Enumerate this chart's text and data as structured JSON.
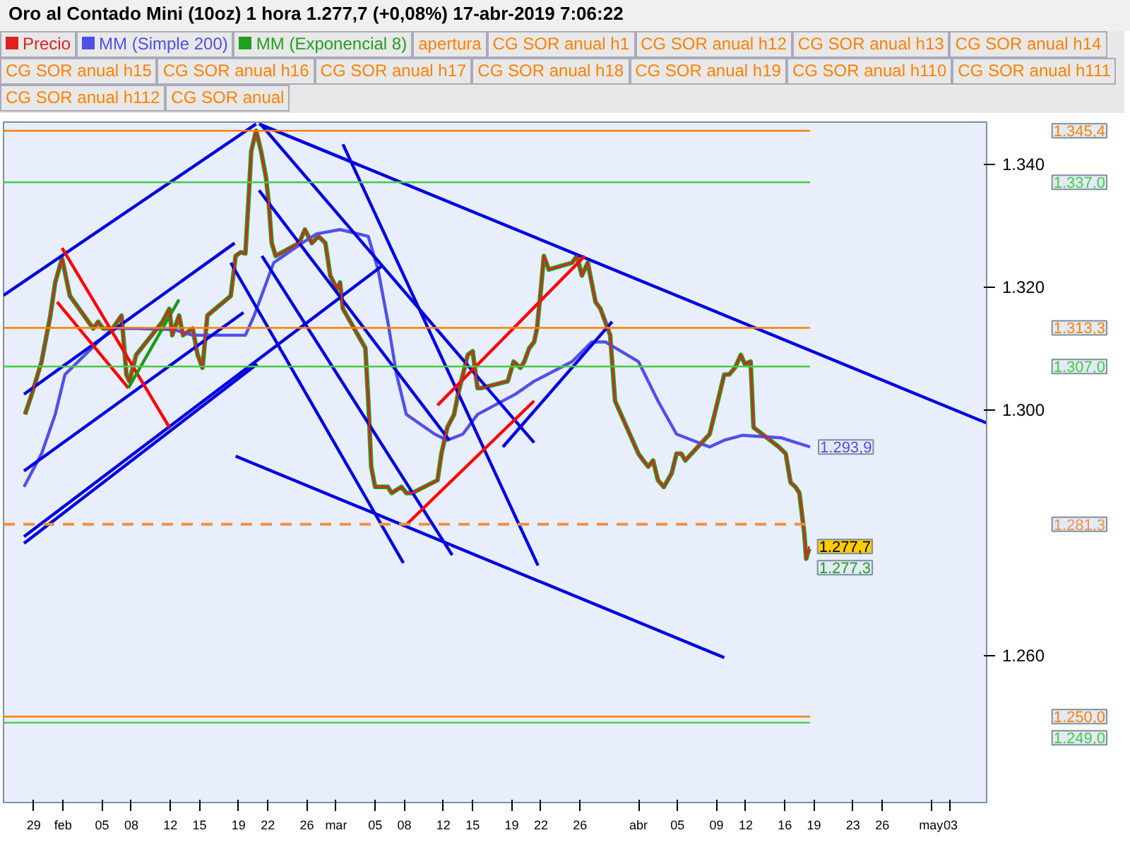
{
  "chart_data": {
    "type": "line",
    "title": "Oro al Contado Mini (10oz)   1 hora   1.277,7 (+0,08%)   17-abr-2019 7:06:22",
    "xlim": [
      "2019-01-25T21:36",
      "2019-05-06T16:48"
    ],
    "ylim": [
      1236,
      1346.8
    ],
    "xticks": [
      {
        "value": "2019-01-29",
        "label": "29"
      },
      {
        "value": "2019-02-01",
        "label": "feb"
      },
      {
        "value": "2019-02-05",
        "label": "05"
      },
      {
        "value": "2019-02-08",
        "label": "08"
      },
      {
        "value": "2019-02-12",
        "label": "12"
      },
      {
        "value": "2019-02-15",
        "label": "15"
      },
      {
        "value": "2019-02-19",
        "label": "19"
      },
      {
        "value": "2019-02-22",
        "label": "22"
      },
      {
        "value": "2019-02-26",
        "label": "26"
      },
      {
        "value": "2019-03-01",
        "label": "mar"
      },
      {
        "value": "2019-03-05",
        "label": "05"
      },
      {
        "value": "2019-03-08",
        "label": "08"
      },
      {
        "value": "2019-03-12",
        "label": "12"
      },
      {
        "value": "2019-03-15",
        "label": "15"
      },
      {
        "value": "2019-03-19",
        "label": "19"
      },
      {
        "value": "2019-03-22",
        "label": "22"
      },
      {
        "value": "2019-03-26",
        "label": "26"
      },
      {
        "value": "2019-04-01",
        "label": "abr"
      },
      {
        "value": "2019-04-05",
        "label": "05"
      },
      {
        "value": "2019-04-09",
        "label": "09"
      },
      {
        "value": "2019-04-12",
        "label": "12"
      },
      {
        "value": "2019-04-16",
        "label": "16"
      },
      {
        "value": "2019-04-19",
        "label": "19"
      },
      {
        "value": "2019-04-23",
        "label": "23"
      },
      {
        "value": "2019-04-26",
        "label": "26"
      },
      {
        "value": "2019-05-01",
        "label": "may"
      },
      {
        "value": "2019-05-03",
        "label": "03"
      }
    ],
    "yticks": [
      {
        "value": 1260,
        "label": "1.260"
      },
      {
        "value": 1300,
        "label": "1.300"
      },
      {
        "value": 1320,
        "label": "1.320"
      },
      {
        "value": 1340,
        "label": "1.340"
      }
    ],
    "legend": "top",
    "series": [
      {
        "name": "Precio",
        "color": "#e02020",
        "x": [
          "2019-01-28T02:24",
          "2019-01-28T19:12",
          "2019-01-29T19:12",
          "2019-01-30T16:48",
          "2019-01-31T04:48",
          "2019-01-31T21:36",
          "2019-02-01T16:48",
          "2019-02-04T02:24",
          "2019-02-04T14:24",
          "2019-02-05T02:24",
          "2019-02-06T02:24",
          "2019-02-07T00:00",
          "2019-02-07T12:00",
          "2019-02-07T19:12",
          "2019-02-08T12:00",
          "2019-02-11T04:48",
          "2019-02-11T21:36",
          "2019-02-12T04:48",
          "2019-02-12T21:36",
          "2019-02-13T07:12",
          "2019-02-14T07:12",
          "2019-02-14T19:12",
          "2019-02-15T07:12",
          "2019-02-15T19:12",
          "2019-02-18T04:48",
          "2019-02-18T16:48",
          "2019-02-19T04:48",
          "2019-02-19T16:48",
          "2019-02-20T00:00",
          "2019-02-20T07:12",
          "2019-02-20T19:12",
          "2019-02-21T07:12",
          "2019-02-21T19:12",
          "2019-02-22T02:24",
          "2019-02-22T09:36",
          "2019-02-22T19:12",
          "2019-02-25T04:48",
          "2019-02-25T19:12",
          "2019-02-26T12:00",
          "2019-02-27T04:48",
          "2019-02-27T21:36",
          "2019-02-28T09:36",
          "2019-03-01T02:24",
          "2019-03-01T09:36",
          "2019-03-01T16:48",
          "2019-03-04T00:00",
          "2019-03-04T07:12",
          "2019-03-04T14:24",
          "2019-03-05T00:00",
          "2019-03-05T14:24",
          "2019-03-06T07:12",
          "2019-03-06T16:48",
          "2019-03-07T16:48",
          "2019-03-08T04:48",
          "2019-03-08T19:12",
          "2019-03-11T09:36",
          "2019-03-11T19:12",
          "2019-03-12T09:36",
          "2019-03-13T02:24",
          "2019-03-13T12:00",
          "2019-03-14T00:00",
          "2019-03-14T12:00",
          "2019-03-15T00:00",
          "2019-03-15T12:00",
          "2019-03-15T21:36",
          "2019-03-18T14:24",
          "2019-03-19T04:48",
          "2019-03-19T21:36",
          "2019-03-20T07:12",
          "2019-03-20T19:12",
          "2019-03-21T07:12",
          "2019-03-21T14:24",
          "2019-03-22T00:00",
          "2019-03-22T07:12",
          "2019-03-22T19:12",
          "2019-03-25T04:48",
          "2019-03-25T16:48",
          "2019-03-26T04:48",
          "2019-03-26T19:12",
          "2019-03-27T04:48",
          "2019-03-27T14:24",
          "2019-03-28T02:24",
          "2019-03-28T14:24",
          "2019-03-29T02:24",
          "2019-03-29T14:24",
          "2019-04-01T00:00",
          "2019-04-01T12:00",
          "2019-04-02T00:00",
          "2019-04-02T12:00",
          "2019-04-03T00:00",
          "2019-04-03T14:24",
          "2019-04-04T09:36",
          "2019-04-04T21:36",
          "2019-04-05T09:36",
          "2019-04-05T19:12",
          "2019-04-08T07:12",
          "2019-04-08T19:12",
          "2019-04-09T19:12",
          "2019-04-10T07:12",
          "2019-04-10T21:36",
          "2019-04-11T12:00",
          "2019-04-11T21:36",
          "2019-04-12T12:00",
          "2019-04-12T19:12",
          "2019-04-15T09:36",
          "2019-04-16T02:24",
          "2019-04-16T14:24",
          "2019-04-17T02:24",
          "2019-04-17T12:00",
          "2019-04-18T00:00",
          "2019-04-18T04:48",
          "2019-04-18T12:00"
        ],
        "values": [
          1299.2,
          1302.5,
          1307.8,
          1315.3,
          1320.7,
          1324.6,
          1318.5,
          1313.2,
          1314.3,
          1313.2,
          1313.2,
          1315.3,
          1305.7,
          1304.6,
          1308.9,
          1314.3,
          1316.4,
          1312.1,
          1315.3,
          1312.1,
          1313.2,
          1308.9,
          1306.8,
          1315.3,
          1318.5,
          1325.0,
          1325.6,
          1325.4,
          1333.6,
          1342.1,
          1345.4,
          1342.1,
          1337.9,
          1333.6,
          1327.1,
          1325.0,
          1327.1,
          1329.3,
          1327.1,
          1328.2,
          1327.1,
          1321.8,
          1319.6,
          1320.7,
          1316.4,
          1310.0,
          1301.4,
          1290.7,
          1287.4,
          1287.4,
          1287.4,
          1286.4,
          1287.4,
          1286.4,
          1286.4,
          1288.5,
          1292.8,
          1297.1,
          1299.2,
          1302.5,
          1305.7,
          1308.9,
          1309.5,
          1303.5,
          1303.5,
          1304.6,
          1307.8,
          1306.8,
          1307.8,
          1310.0,
          1311.0,
          1313.2,
          1319.6,
          1325.0,
          1322.8,
          1323.9,
          1325.0,
          1321.8,
          1323.9,
          1320.7,
          1317.5,
          1316.4,
          1314.3,
          1312.1,
          1301.4,
          1292.8,
          1291.7,
          1290.7,
          1291.7,
          1288.5,
          1287.4,
          1289.6,
          1292.8,
          1292.8,
          1291.7,
          1296.0,
          1299.2,
          1305.7,
          1305.7,
          1306.8,
          1308.9,
          1307.4,
          1307.8,
          1297.1,
          1293.9,
          1292.8,
          1288.1,
          1287.4,
          1286.4,
          1279.9,
          1275.7,
          1277.7
        ],
        "value_labels": [
          null,
          null,
          null,
          null,
          null,
          null,
          null,
          null,
          null,
          null,
          null,
          null,
          null,
          null,
          null,
          null,
          null,
          null,
          null,
          null,
          null,
          null,
          null,
          null,
          null,
          null,
          null,
          null,
          null,
          null,
          null,
          null,
          null,
          null,
          null,
          null,
          null,
          null,
          null,
          null,
          null,
          null,
          null,
          null,
          null,
          null,
          null,
          null,
          null,
          null,
          null,
          null,
          null,
          null,
          null,
          null,
          null,
          null,
          null,
          null,
          null,
          null,
          null,
          null,
          null,
          null,
          null,
          null,
          null,
          null,
          null,
          null,
          null,
          null,
          null,
          null,
          null,
          null,
          null,
          null,
          null,
          null,
          null,
          null,
          null,
          null,
          null,
          null,
          null,
          null,
          null,
          null,
          null,
          null,
          null,
          null,
          null,
          null,
          null,
          null,
          null,
          null,
          null,
          null,
          null,
          null,
          null,
          null,
          null,
          null,
          null,
          "1.277,7"
        ]
      },
      {
        "name": "MM (Simple 200)",
        "color": "#5050e8",
        "x": [
          "2019-01-28T00:00",
          "2019-01-29T19:12",
          "2019-01-31T04:48",
          "2019-02-01T04:48",
          "2019-02-04T14:24",
          "2019-02-06T02:24",
          "2019-02-08T12:00",
          "2019-02-12T09:36",
          "2019-02-14T07:12",
          "2019-02-19T16:48",
          "2019-02-20T14:24",
          "2019-02-21T14:24",
          "2019-02-22T14:24",
          "2019-02-25T12:00",
          "2019-02-27T00:00",
          "2019-03-01T09:36",
          "2019-03-04T07:12",
          "2019-03-05T07:12",
          "2019-03-06T07:12",
          "2019-03-07T04:48",
          "2019-03-08T04:48",
          "2019-03-11T02:24",
          "2019-03-12T09:36",
          "2019-03-14T00:00",
          "2019-03-15T12:00",
          "2019-03-19T09:36",
          "2019-03-21T07:12",
          "2019-03-25T04:48",
          "2019-03-27T04:48",
          "2019-03-28T14:24",
          "2019-04-01T00:00",
          "2019-04-03T00:00",
          "2019-04-04T21:36",
          "2019-04-08T07:12",
          "2019-04-09T19:12",
          "2019-04-11T16:48",
          "2019-04-15T14:24",
          "2019-04-18T14:24"
        ],
        "values": [
          1287.4,
          1292.8,
          1299.2,
          1305.7,
          1311.0,
          1313.2,
          1313.2,
          1313.0,
          1312.1,
          1312.1,
          1315.3,
          1319.6,
          1323.9,
          1327.1,
          1328.6,
          1329.3,
          1328.2,
          1322.8,
          1314.3,
          1305.7,
          1299.2,
          1296.0,
          1295.0,
          1296.0,
          1299.2,
          1302.5,
          1304.6,
          1307.8,
          1311.0,
          1311.0,
          1307.8,
          1301.4,
          1296.0,
          1293.9,
          1295.0,
          1295.8,
          1295.4,
          1293.9
        ],
        "value_labels": [
          null,
          null,
          null,
          null,
          null,
          null,
          null,
          null,
          null,
          null,
          null,
          null,
          null,
          null,
          null,
          null,
          null,
          null,
          null,
          null,
          null,
          null,
          null,
          null,
          null,
          null,
          null,
          null,
          null,
          null,
          null,
          null,
          null,
          null,
          null,
          null,
          null,
          "1.293,9"
        ]
      },
      {
        "name": "MM (Exponencial 8)",
        "color": "#1fa01f",
        "x": [
          "2019-01-28T02:24",
          "2019-01-28T19:12",
          "2019-01-29T19:12",
          "2019-01-30T16:48",
          "2019-01-31T04:48",
          "2019-01-31T21:36",
          "2019-02-01T16:48",
          "2019-02-04T02:24",
          "2019-02-04T14:24",
          "2019-02-05T02:24",
          "2019-02-06T02:24",
          "2019-02-07T00:00",
          "2019-02-07T12:00",
          "2019-02-07T19:12",
          "2019-02-08T12:00",
          "2019-02-11T04:48",
          "2019-02-11T21:36",
          "2019-02-12T04:48",
          "2019-02-12T21:36",
          "2019-02-13T07:12",
          "2019-02-14T07:12",
          "2019-02-14T19:12",
          "2019-02-15T07:12",
          "2019-02-15T19:12",
          "2019-02-18T04:48",
          "2019-02-18T16:48",
          "2019-02-19T04:48",
          "2019-02-19T16:48",
          "2019-02-20T00:00",
          "2019-02-20T07:12",
          "2019-02-20T19:12",
          "2019-02-21T07:12",
          "2019-02-21T19:12",
          "2019-02-22T02:24",
          "2019-02-22T09:36",
          "2019-02-22T19:12",
          "2019-02-25T04:48",
          "2019-02-25T19:12",
          "2019-02-26T12:00",
          "2019-02-27T04:48",
          "2019-02-27T21:36",
          "2019-02-28T09:36",
          "2019-03-01T02:24",
          "2019-03-01T09:36",
          "2019-03-01T16:48",
          "2019-03-04T00:00",
          "2019-03-04T07:12",
          "2019-03-04T14:24",
          "2019-03-05T00:00",
          "2019-03-05T14:24",
          "2019-03-06T07:12",
          "2019-03-06T16:48",
          "2019-03-07T16:48",
          "2019-03-08T04:48",
          "2019-03-08T19:12",
          "2019-03-11T09:36",
          "2019-03-11T19:12",
          "2019-03-12T09:36",
          "2019-03-13T02:24",
          "2019-03-13T12:00",
          "2019-03-14T00:00",
          "2019-03-14T12:00",
          "2019-03-15T00:00",
          "2019-03-15T12:00",
          "2019-03-15T21:36",
          "2019-03-18T14:24",
          "2019-03-19T04:48",
          "2019-03-19T21:36",
          "2019-03-20T07:12",
          "2019-03-20T19:12",
          "2019-03-21T07:12",
          "2019-03-21T14:24",
          "2019-03-22T00:00",
          "2019-03-22T07:12",
          "2019-03-22T19:12",
          "2019-03-25T04:48",
          "2019-03-25T16:48",
          "2019-03-26T04:48",
          "2019-03-26T19:12",
          "2019-03-27T04:48",
          "2019-03-27T14:24",
          "2019-03-28T02:24",
          "2019-03-28T14:24",
          "2019-03-29T02:24",
          "2019-03-29T14:24",
          "2019-04-01T00:00",
          "2019-04-01T12:00",
          "2019-04-02T00:00",
          "2019-04-02T12:00",
          "2019-04-03T00:00",
          "2019-04-03T14:24",
          "2019-04-04T09:36",
          "2019-04-04T21:36",
          "2019-04-05T09:36",
          "2019-04-05T19:12",
          "2019-04-08T07:12",
          "2019-04-08T19:12",
          "2019-04-09T19:12",
          "2019-04-10T07:12",
          "2019-04-10T21:36",
          "2019-04-11T12:00",
          "2019-04-11T21:36",
          "2019-04-12T12:00",
          "2019-04-12T19:12",
          "2019-04-15T09:36",
          "2019-04-16T02:24",
          "2019-04-16T14:24",
          "2019-04-17T02:24",
          "2019-04-17T12:00",
          "2019-04-18T00:00",
          "2019-04-18T04:48",
          "2019-04-18T12:00"
        ],
        "values": [
          1299.2,
          1302.5,
          1307.8,
          1315.3,
          1320.7,
          1324.6,
          1318.5,
          1313.2,
          1314.3,
          1313.2,
          1313.2,
          1315.3,
          1305.7,
          1304.6,
          1308.9,
          1314.3,
          1316.4,
          1312.1,
          1315.3,
          1312.1,
          1313.2,
          1308.9,
          1306.8,
          1315.3,
          1318.5,
          1325.0,
          1325.6,
          1325.4,
          1333.6,
          1342.1,
          1345.4,
          1342.1,
          1337.9,
          1333.6,
          1327.1,
          1325.0,
          1327.1,
          1329.3,
          1327.1,
          1328.2,
          1327.1,
          1321.8,
          1319.6,
          1320.7,
          1316.4,
          1310.0,
          1301.4,
          1290.7,
          1287.4,
          1287.4,
          1287.4,
          1286.4,
          1287.4,
          1286.4,
          1286.4,
          1288.5,
          1292.8,
          1297.1,
          1299.2,
          1302.5,
          1305.7,
          1308.9,
          1309.5,
          1303.5,
          1303.5,
          1304.6,
          1307.8,
          1306.8,
          1307.8,
          1310.0,
          1311.0,
          1313.2,
          1319.6,
          1325.0,
          1322.8,
          1323.9,
          1325.0,
          1321.8,
          1323.9,
          1320.7,
          1317.5,
          1316.4,
          1314.3,
          1312.1,
          1301.4,
          1292.8,
          1291.7,
          1290.7,
          1291.7,
          1288.5,
          1287.4,
          1289.6,
          1292.8,
          1292.8,
          1291.7,
          1296.0,
          1299.2,
          1305.7,
          1305.7,
          1306.8,
          1308.9,
          1307.4,
          1307.8,
          1297.1,
          1293.9,
          1292.8,
          1288.1,
          1287.4,
          1286.4,
          1279.9,
          1275.7,
          1277.3
        ],
        "value_labels": [
          null,
          null,
          null,
          null,
          null,
          null,
          null,
          null,
          null,
          null,
          null,
          null,
          null,
          null,
          null,
          null,
          null,
          null,
          null,
          null,
          null,
          null,
          null,
          null,
          null,
          null,
          null,
          null,
          null,
          null,
          null,
          null,
          null,
          null,
          null,
          null,
          null,
          null,
          null,
          null,
          null,
          null,
          null,
          null,
          null,
          null,
          null,
          null,
          null,
          null,
          null,
          null,
          null,
          null,
          null,
          null,
          null,
          null,
          null,
          null,
          null,
          null,
          null,
          null,
          null,
          null,
          null,
          null,
          null,
          null,
          null,
          null,
          null,
          null,
          null,
          null,
          null,
          null,
          null,
          null,
          null,
          null,
          null,
          null,
          null,
          null,
          null,
          null,
          null,
          null,
          null,
          null,
          null,
          null,
          null,
          null,
          null,
          null,
          null,
          null,
          null,
          null,
          null,
          null,
          null,
          null,
          null,
          null,
          null,
          null,
          null,
          "1.277,3"
        ]
      },
      {
        "color": "#0000e0",
        "x": [
          "2019-01-25T21:36",
          "2019-02-20T19:12"
        ],
        "values": [
          1318.6,
          1346.5
        ]
      },
      {
        "color": "#0000e0",
        "x": [
          "2019-01-28T00:00",
          "2019-02-18T14:24"
        ],
        "values": [
          1302.5,
          1327.1
        ]
      },
      {
        "color": "#0000e0",
        "x": [
          "2019-01-28T00:00",
          "2019-02-19T12:00"
        ],
        "values": [
          1290.0,
          1315.8
        ]
      },
      {
        "color": "#0000e0",
        "x": [
          "2019-01-28T00:00",
          "2019-03-05T19:12"
        ],
        "values": [
          1279.3,
          1323.5
        ]
      },
      {
        "color": "#0000e0",
        "x": [
          "2019-01-28T00:00",
          "2019-02-20T21:36"
        ],
        "values": [
          1278.2,
          1307.4
        ]
      },
      {
        "color": "#0000e0",
        "x": [
          "2019-02-21T02:24",
          "2019-05-06T16:48"
        ],
        "values": [
          1346.5,
          1297.8
        ]
      },
      {
        "color": "#0000e0",
        "x": [
          "2019-02-18T04:48",
          "2019-03-07T21:36"
        ],
        "values": [
          1323.9,
          1275.0
        ]
      },
      {
        "color": "#0000e0",
        "x": [
          "2019-02-21T09:36",
          "2019-03-12T21:36"
        ],
        "values": [
          1325.0,
          1276.3
        ]
      },
      {
        "color": "#0000e0",
        "x": [
          "2019-02-21T02:24",
          "2019-03-12T14:24"
        ],
        "values": [
          1335.7,
          1295.0
        ]
      },
      {
        "color": "#0000e0",
        "x": [
          "2019-02-21T07:12",
          "2019-03-21T07:12"
        ],
        "values": [
          1346.4,
          1294.6
        ]
      },
      {
        "color": "#0000e0",
        "x": [
          "2019-03-01T16:48",
          "2019-03-21T16:48"
        ],
        "values": [
          1343.2,
          1274.6
        ]
      },
      {
        "color": "#0000e0",
        "x": [
          "2019-02-18T16:48",
          "2019-04-09T19:12"
        ],
        "values": [
          1292.4,
          1259.6
        ]
      },
      {
        "color": "#0000e0",
        "x": [
          "2019-03-18T02:24",
          "2019-03-29T07:12"
        ],
        "values": [
          1293.9,
          1314.3
        ]
      },
      {
        "color": "#ff0000",
        "x": [
          "2019-01-31T21:36",
          "2019-02-11T21:36"
        ],
        "values": [
          1326.3,
          1297.1
        ]
      },
      {
        "color": "#ff0000",
        "x": [
          "2019-01-31T09:36",
          "2019-02-07T16:48"
        ],
        "values": [
          1317.5,
          1303.5
        ]
      },
      {
        "color": "#ff0000",
        "x": [
          "2019-03-08T07:12",
          "2019-03-21T07:12"
        ],
        "values": [
          1281.4,
          1301.4
        ]
      },
      {
        "color": "#ff0000",
        "x": [
          "2019-03-11T09:36",
          "2019-03-26T12:00"
        ],
        "values": [
          1300.7,
          1325.0
        ]
      },
      {
        "color": "#1a9a1a",
        "x": [
          "2019-02-07T16:48",
          "2019-02-12T21:36"
        ],
        "values": [
          1303.5,
          1317.9
        ]
      }
    ],
    "ref_lines": [
      {
        "axis": "y",
        "value": 1345.4,
        "label": "1.345,4",
        "color": "#ff7f00"
      },
      {
        "axis": "y",
        "value": 1337.0,
        "label": "1.337,0",
        "color": "#44cc44"
      },
      {
        "axis": "y",
        "value": 1313.3,
        "label": "1.313,3",
        "color": "#ff7f00"
      },
      {
        "axis": "y",
        "value": 1307.0,
        "label": "1.307,0",
        "color": "#44cc44"
      },
      {
        "axis": "y",
        "value": 1281.3,
        "label": "1.281,3",
        "color": "#f09040",
        "line_style": "dashed"
      },
      {
        "axis": "y",
        "value": 1250.0,
        "label": "1.250,0",
        "color": "#ff7f00"
      },
      {
        "axis": "y",
        "value": 1249.0,
        "label": "1.249,0",
        "color": "#44cc44"
      }
    ],
    "annotations": [
      "apertura",
      "CG SOR anual h1",
      "CG SOR anual h12",
      "CG SOR anual h13",
      "CG SOR anual h14",
      "CG SOR anual h15",
      "CG SOR anual h16",
      "CG SOR anual h17",
      "CG SOR anual h18",
      "CG SOR anual h19",
      "CG SOR anual h110",
      "CG SOR anual h111",
      "CG SOR anual h112",
      "CG SOR anual"
    ]
  }
}
